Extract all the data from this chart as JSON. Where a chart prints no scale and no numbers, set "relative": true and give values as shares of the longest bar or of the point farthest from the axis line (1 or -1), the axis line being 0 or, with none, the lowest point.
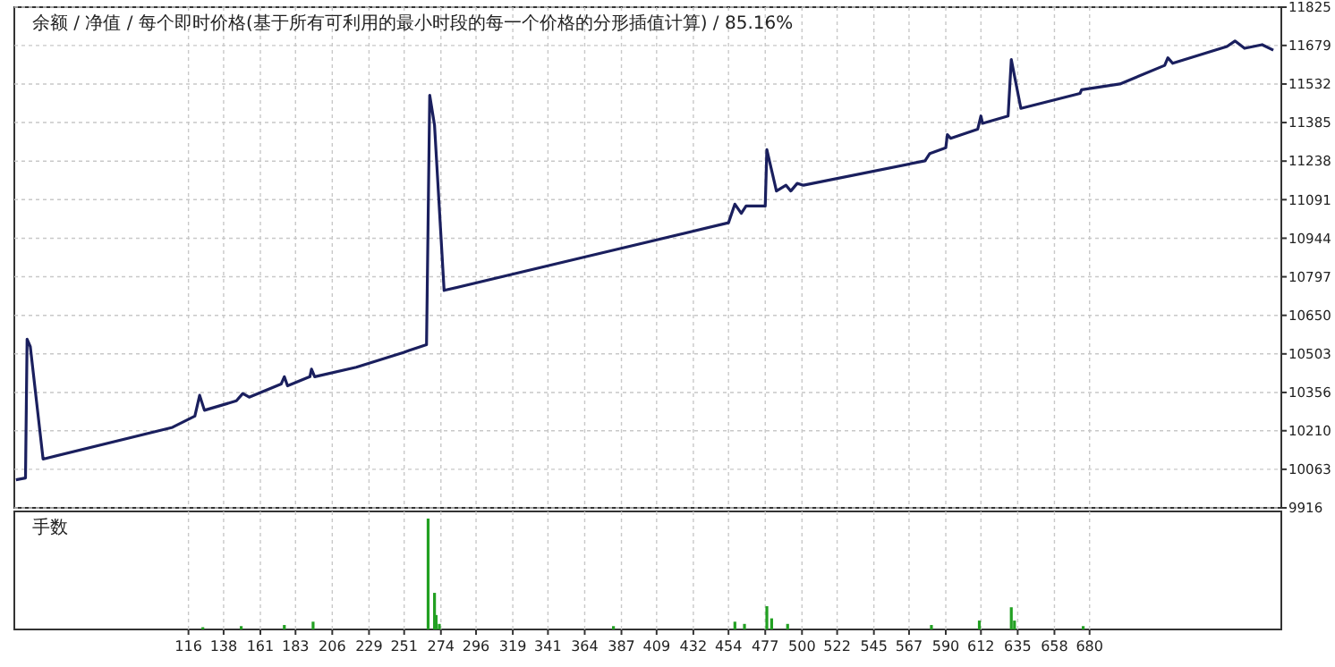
{
  "chart_data": [
    {
      "type": "line",
      "title": "余额 / 净值 / 每个即时价格(基于所有可利用的最小时段的每一个价格的分形插值计算) / 85.16%",
      "xlim": [
        7,
        800
      ],
      "xticks": [
        116,
        138,
        161,
        183,
        206,
        229,
        251,
        274,
        296,
        319,
        341,
        364,
        387,
        409,
        432,
        454,
        477,
        500,
        522,
        545,
        567,
        590,
        612,
        635,
        658,
        680
      ],
      "ylim": [
        9916,
        11825
      ],
      "yticks": [
        9916,
        10063,
        10210,
        10356,
        10503,
        10650,
        10797,
        10944,
        11091,
        11238,
        11385,
        11532,
        11679,
        11825
      ],
      "grid": true,
      "tick_labels": "y",
      "marker": "none",
      "line_style": "solid",
      "series": [
        {
          "color": "#1a1f5e",
          "x": [
            8,
            14,
            15,
            17,
            25,
            106,
            120,
            123,
            126,
            146,
            150,
            154,
            174,
            176,
            178,
            192,
            193,
            195,
            221,
            251,
            254,
            265,
            267,
            270,
            276,
            365,
            454,
            458,
            462,
            465,
            477,
            478,
            484,
            490,
            493,
            497,
            501,
            577,
            580,
            590,
            591,
            593,
            610,
            612,
            613,
            629,
            631,
            637,
            674,
            675,
            699,
            727,
            729,
            732,
            766,
            771,
            777,
            788,
            795
          ],
          "values": [
            10023,
            10030,
            10559,
            10531,
            10102,
            10223,
            10266,
            10345,
            10288,
            10324,
            10352,
            10338,
            10388,
            10416,
            10381,
            10416,
            10445,
            10416,
            10452,
            10509,
            10516,
            10538,
            11489,
            11375,
            10745,
            10874,
            11003,
            11074,
            11039,
            11067,
            11067,
            11282,
            11124,
            11146,
            11124,
            11153,
            11146,
            11239,
            11267,
            11289,
            11339,
            11325,
            11360,
            11410,
            11382,
            11410,
            11625,
            11439,
            11496,
            11510,
            11532,
            11603,
            11632,
            11611,
            11675,
            11696,
            11668,
            11682,
            11661
          ]
        }
      ]
    },
    {
      "type": "bar",
      "title": "手数",
      "relative": true,
      "xlim": [
        7,
        800
      ],
      "xticks": [
        116,
        138,
        161,
        183,
        206,
        229,
        251,
        274,
        296,
        319,
        341,
        364,
        387,
        409,
        432,
        454,
        477,
        500,
        522,
        545,
        567,
        590,
        612,
        635,
        658,
        680
      ],
      "grid": "x",
      "tick_labels": "x",
      "series": [
        {
          "color": "#22a022",
          "x": [
            125,
            149,
            176,
            194,
            266,
            270,
            271,
            273,
            382,
            458,
            464,
            478,
            481,
            491,
            581,
            611,
            631,
            633,
            676
          ],
          "values": [
            0.02,
            0.03,
            0.04,
            0.07,
            1,
            0.33,
            0.13,
            0.05,
            0.03,
            0.07,
            0.05,
            0.21,
            0.1,
            0.05,
            0.04,
            0.08,
            0.2,
            0.08,
            0.03
          ]
        }
      ]
    }
  ]
}
